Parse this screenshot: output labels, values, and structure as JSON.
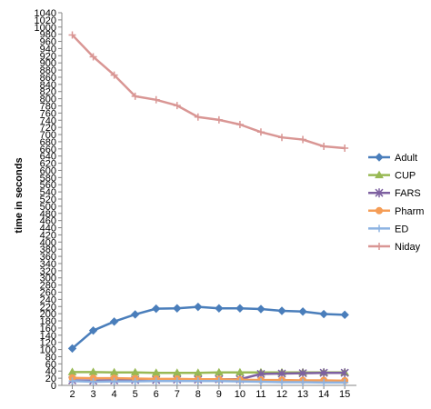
{
  "chart_data": {
    "type": "line",
    "title": "",
    "xlabel": "",
    "ylabel": "time in seconds",
    "x": [
      2,
      3,
      4,
      5,
      6,
      7,
      8,
      9,
      10,
      11,
      12,
      13,
      14,
      15
    ],
    "ylim": [
      0,
      1040
    ],
    "ytick_step": 20,
    "grid": false,
    "legend_position": "right",
    "series": [
      {
        "name": "Adult",
        "color": "#4A7EBB",
        "marker": "diamond",
        "values": [
          103,
          153,
          178,
          198,
          214,
          215,
          219,
          215,
          215,
          213,
          208,
          206,
          199,
          197
        ]
      },
      {
        "name": "CUP",
        "color": "#98B954",
        "marker": "triangle",
        "values": [
          37,
          37,
          36,
          36,
          35,
          35,
          35,
          36,
          36,
          36,
          36,
          36,
          36,
          36
        ]
      },
      {
        "name": "FARS",
        "color": "#7D60A0",
        "marker": "star",
        "values": [
          14,
          13,
          14,
          15,
          15,
          16,
          16,
          17,
          17,
          32,
          33,
          34,
          35,
          35
        ]
      },
      {
        "name": "Pharm",
        "color": "#F59D56",
        "marker": "circle",
        "values": [
          21,
          20,
          20,
          19,
          18,
          18,
          17,
          17,
          16,
          15,
          15,
          14,
          14,
          13
        ]
      },
      {
        "name": "ED",
        "color": "#8DB3E2",
        "marker": "plus",
        "values": [
          12,
          10,
          11,
          11,
          12,
          12,
          12,
          12,
          11,
          10,
          9,
          9,
          8,
          8
        ]
      },
      {
        "name": "Niday",
        "color": "#D99694",
        "marker": "plus",
        "values": [
          978,
          917,
          866,
          807,
          797,
          781,
          749,
          741,
          728,
          707,
          692,
          686,
          667,
          662
        ]
      }
    ]
  }
}
